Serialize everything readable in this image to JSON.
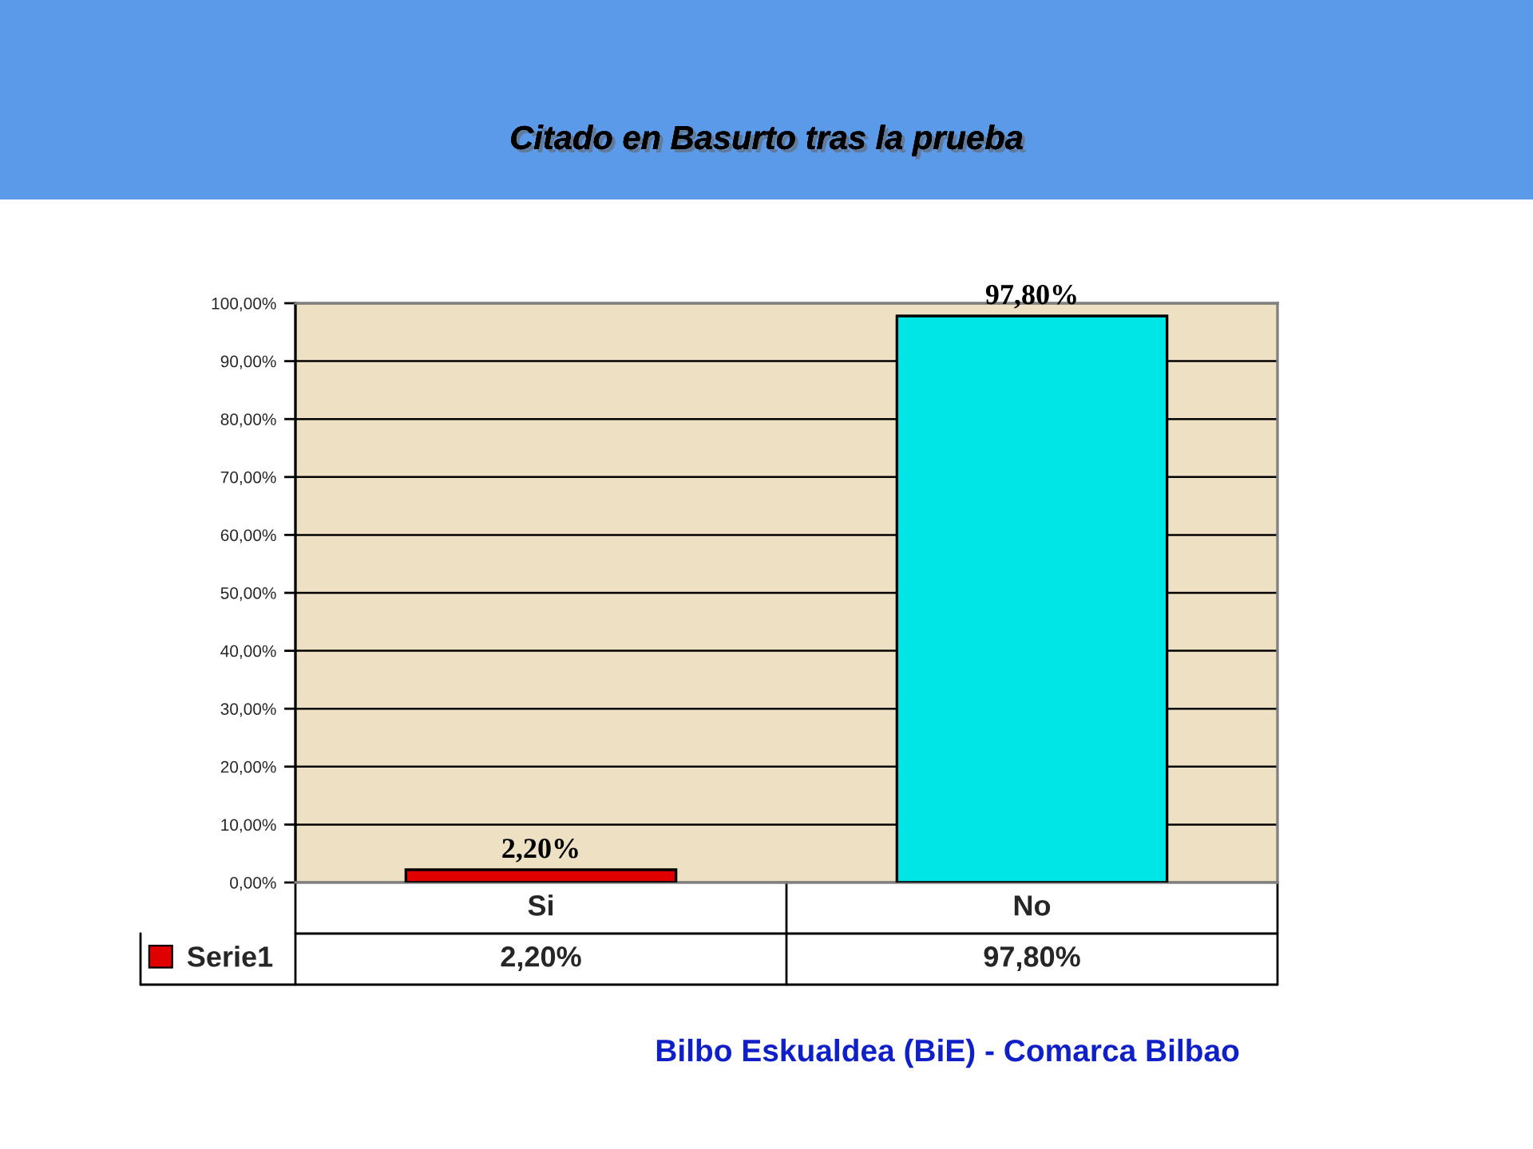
{
  "chart_data": {
    "type": "bar",
    "title": "Citado en Basurto tras la prueba",
    "categories": [
      "Si",
      "No"
    ],
    "series": [
      {
        "name": "Serie1",
        "color": "#e00000",
        "colors": [
          "#e00000",
          "#00e5e5"
        ],
        "values": [
          2.2,
          97.8
        ],
        "value_labels": [
          "2,20%",
          "97,80%"
        ]
      }
    ],
    "ylim": [
      0,
      100
    ],
    "yticks": [
      {
        "value": 0,
        "label": "0,00%"
      },
      {
        "value": 10,
        "label": "10,00%"
      },
      {
        "value": 20,
        "label": "20,00%"
      },
      {
        "value": 30,
        "label": "30,00%"
      },
      {
        "value": 40,
        "label": "40,00%"
      },
      {
        "value": 50,
        "label": "50,00%"
      },
      {
        "value": 60,
        "label": "60,00%"
      },
      {
        "value": 70,
        "label": "70,00%"
      },
      {
        "value": 80,
        "label": "80,00%"
      },
      {
        "value": 90,
        "label": "90,00%"
      },
      {
        "value": 100,
        "label": "100,00%"
      }
    ],
    "grid": "y",
    "legend": "bottom left",
    "annotations": [
      "Bilbo Eskualdea (BiE) - Comarca Bilbao"
    ]
  }
}
